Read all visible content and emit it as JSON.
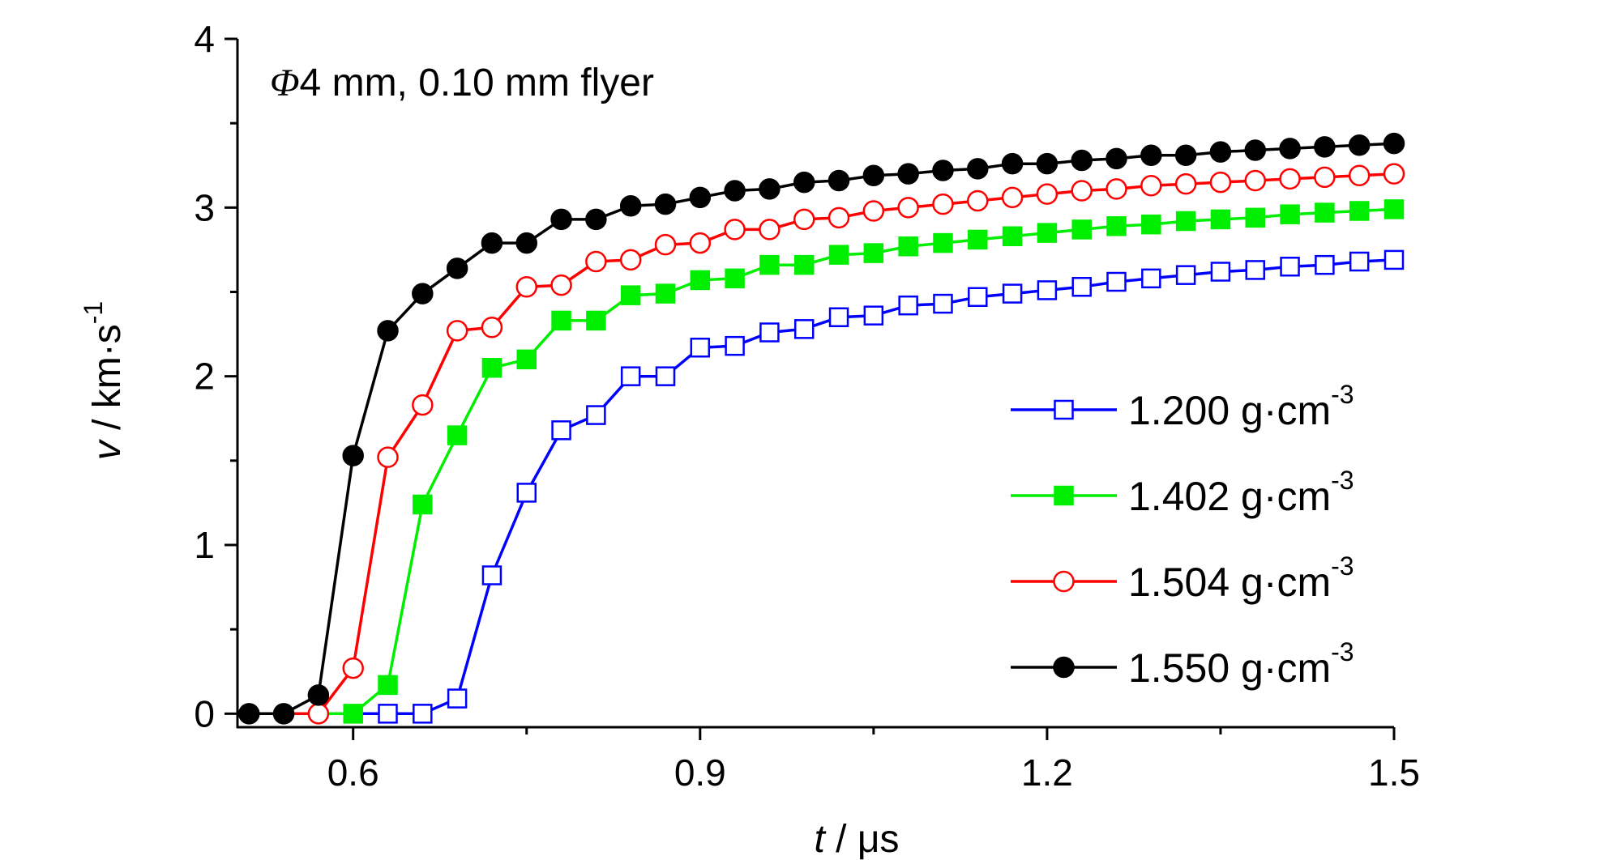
{
  "chart_data": {
    "type": "line",
    "annotation": {
      "symbol": "Φ",
      "text": "4 mm, 0.10 mm flyer"
    },
    "xlabel": {
      "var": "t",
      "rest": " / μs"
    },
    "ylabel": {
      "var": "v",
      "rest": " / km·s",
      "sup": "-1"
    },
    "xlim": [
      0.5,
      1.5
    ],
    "ylim": [
      -0.08,
      4
    ],
    "xticks": [
      0.6,
      0.9,
      1.2,
      1.5
    ],
    "xtick_labels": [
      "0.6",
      "0.9",
      "1.2",
      "1.5"
    ],
    "yticks": [
      0,
      1,
      2,
      3,
      4
    ],
    "ytick_labels": [
      "0",
      "1",
      "2",
      "3",
      "4"
    ],
    "grid": false,
    "legend_placement": "bottom-right",
    "series": [
      {
        "name": "1.200 g·cm",
        "name_sup": "-3",
        "color": "#0000ff",
        "marker": "square-open",
        "x": [
          0.63,
          0.66,
          0.69,
          0.72,
          0.75,
          0.78,
          0.81,
          0.84,
          0.87,
          0.9,
          0.93,
          0.96,
          0.99,
          1.02,
          1.05,
          1.08,
          1.11,
          1.14,
          1.17,
          1.2,
          1.23,
          1.26,
          1.29,
          1.32,
          1.35,
          1.38,
          1.41,
          1.44,
          1.47,
          1.5
        ],
        "y": [
          0.0,
          0.0,
          0.09,
          0.82,
          1.31,
          1.68,
          1.77,
          2.0,
          2.0,
          2.17,
          2.18,
          2.26,
          2.28,
          2.35,
          2.36,
          2.42,
          2.43,
          2.47,
          2.49,
          2.51,
          2.53,
          2.56,
          2.58,
          2.6,
          2.62,
          2.63,
          2.65,
          2.66,
          2.68,
          2.69
        ]
      },
      {
        "name": "1.402 g·cm",
        "name_sup": "-3",
        "color": "#00ee00",
        "marker": "square-filled",
        "x": [
          0.6,
          0.63,
          0.66,
          0.69,
          0.72,
          0.75,
          0.78,
          0.81,
          0.84,
          0.87,
          0.9,
          0.93,
          0.96,
          0.99,
          1.02,
          1.05,
          1.08,
          1.11,
          1.14,
          1.17,
          1.2,
          1.23,
          1.26,
          1.29,
          1.32,
          1.35,
          1.38,
          1.41,
          1.44,
          1.47,
          1.5
        ],
        "y": [
          0.0,
          0.17,
          1.24,
          1.65,
          2.05,
          2.1,
          2.33,
          2.33,
          2.48,
          2.49,
          2.57,
          2.58,
          2.66,
          2.66,
          2.72,
          2.73,
          2.77,
          2.79,
          2.81,
          2.83,
          2.85,
          2.87,
          2.89,
          2.9,
          2.92,
          2.93,
          2.94,
          2.96,
          2.97,
          2.98,
          2.99
        ]
      },
      {
        "name": "1.504 g·cm",
        "name_sup": "-3",
        "color": "#ff0000",
        "marker": "circle-open",
        "x": [
          0.57,
          0.6,
          0.63,
          0.66,
          0.69,
          0.72,
          0.75,
          0.78,
          0.81,
          0.84,
          0.87,
          0.9,
          0.93,
          0.96,
          0.99,
          1.02,
          1.05,
          1.08,
          1.11,
          1.14,
          1.17,
          1.2,
          1.23,
          1.26,
          1.29,
          1.32,
          1.35,
          1.38,
          1.41,
          1.44,
          1.47,
          1.5
        ],
        "y": [
          0.0,
          0.27,
          1.52,
          1.83,
          2.27,
          2.29,
          2.53,
          2.54,
          2.68,
          2.69,
          2.78,
          2.79,
          2.87,
          2.87,
          2.93,
          2.94,
          2.98,
          3.0,
          3.02,
          3.04,
          3.06,
          3.08,
          3.1,
          3.11,
          3.13,
          3.14,
          3.15,
          3.16,
          3.17,
          3.18,
          3.19,
          3.2
        ]
      },
      {
        "name": "1.550 g·cm",
        "name_sup": "-3",
        "color": "#000000",
        "marker": "circle-filled",
        "x": [
          0.51,
          0.54,
          0.57,
          0.6,
          0.63,
          0.66,
          0.69,
          0.72,
          0.75,
          0.78,
          0.81,
          0.84,
          0.87,
          0.9,
          0.93,
          0.96,
          0.99,
          1.02,
          1.05,
          1.08,
          1.11,
          1.14,
          1.17,
          1.2,
          1.23,
          1.26,
          1.29,
          1.32,
          1.35,
          1.38,
          1.41,
          1.44,
          1.47,
          1.5
        ],
        "y": [
          0.0,
          0.0,
          0.11,
          1.53,
          2.27,
          2.49,
          2.64,
          2.79,
          2.79,
          2.93,
          2.93,
          3.01,
          3.02,
          3.06,
          3.1,
          3.11,
          3.15,
          3.16,
          3.19,
          3.2,
          3.22,
          3.23,
          3.26,
          3.26,
          3.28,
          3.29,
          3.31,
          3.31,
          3.33,
          3.34,
          3.35,
          3.36,
          3.37,
          3.38
        ]
      }
    ]
  }
}
